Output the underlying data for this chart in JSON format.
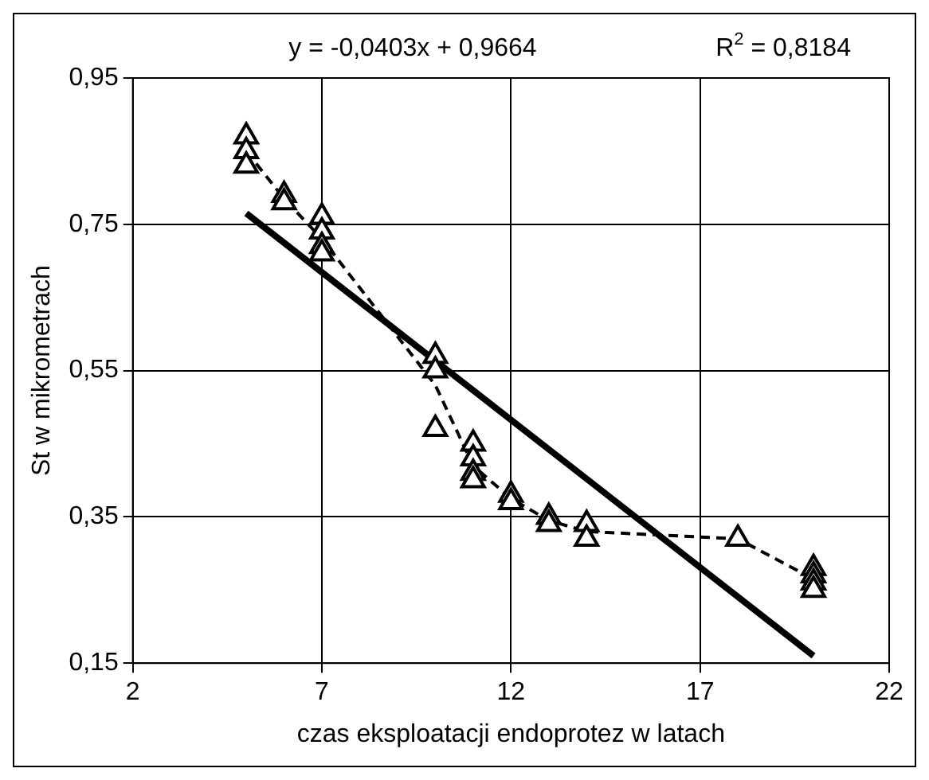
{
  "chart_data": {
    "type": "scatter",
    "xlabel": "czas eksploatacji endoprotez w latach",
    "ylabel": "St w mikrometrach",
    "annotations": [
      "y = -0,0403x + 0,9664",
      "R$^{2}$ = 0,8184"
    ],
    "xlim": [
      2,
      22
    ],
    "xticks": [
      2,
      7,
      12,
      17,
      22
    ],
    "ylim": [
      0.15,
      0.95
    ],
    "yticks": [
      {
        "value": 0.15,
        "label": "0,15"
      },
      {
        "value": 0.35,
        "label": "0,35"
      },
      {
        "value": 0.55,
        "label": "0,55"
      },
      {
        "value": 0.75,
        "label": "0,75"
      },
      {
        "value": 0.95,
        "label": "0,95"
      }
    ],
    "grid": true,
    "legend": false,
    "series": [
      {
        "type": "scatter",
        "color": "#000000",
        "marker": "triangle",
        "x": [
          5,
          5,
          5,
          6,
          6,
          7,
          7,
          7,
          7,
          10,
          10,
          10,
          11,
          11,
          11,
          11,
          12,
          12,
          13,
          13,
          14,
          14,
          18,
          20,
          20,
          20,
          20
        ],
        "values": [
          0.87,
          0.85,
          0.83,
          0.79,
          0.78,
          0.76,
          0.74,
          0.72,
          0.71,
          0.57,
          0.55,
          0.47,
          0.45,
          0.43,
          0.41,
          0.4,
          0.38,
          0.37,
          0.35,
          0.34,
          0.34,
          0.32,
          0.32,
          0.28,
          0.27,
          0.26,
          0.25
        ]
      },
      {
        "type": "line",
        "color": "#000000",
        "line_style": "dashed",
        "marker": "none",
        "x": [
          5,
          6,
          7,
          10,
          11,
          12,
          13,
          14,
          18,
          20
        ],
        "values": [
          0.85,
          0.785,
          0.73,
          0.53,
          0.42,
          0.375,
          0.345,
          0.33,
          0.32,
          0.265
        ]
      },
      {
        "type": "line",
        "color": "#000000",
        "line_style": "solid",
        "marker": "none",
        "x": [
          5,
          20
        ],
        "values": [
          0.765,
          0.16
        ]
      }
    ]
  }
}
